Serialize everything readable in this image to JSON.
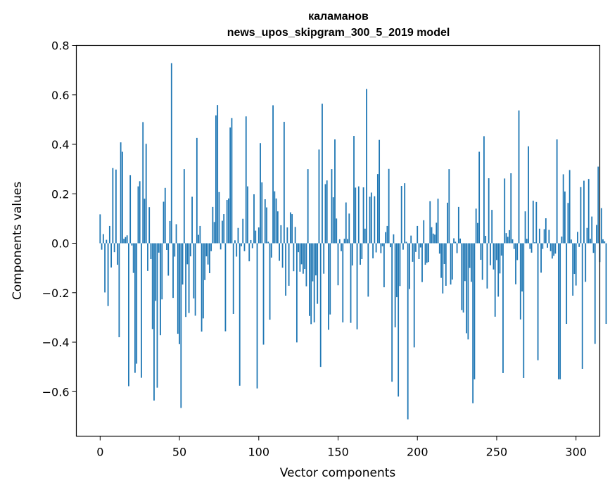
{
  "chart_data": {
    "type": "bar",
    "title_line1": "каламанов",
    "title_line2": "news_upos_skipgram_300_5_2019 model",
    "xlabel": "Vector components",
    "ylabel": "Components values",
    "xlim": [
      -15,
      315
    ],
    "ylim": [
      -0.78,
      0.8
    ],
    "xticks": [
      0,
      50,
      100,
      150,
      200,
      250,
      300
    ],
    "yticks": [
      -0.6,
      -0.4,
      -0.2,
      0.0,
      0.2,
      0.4,
      0.6,
      0.8
    ],
    "ytick_labels": [
      "−0.6",
      "−0.4",
      "−0.2",
      "0.0",
      "0.2",
      "0.4",
      "0.6",
      "0.8"
    ],
    "bar_color": "#1f77b4",
    "values": [
      0.117,
      -0.026,
      0.037,
      -0.199,
      0.014,
      -0.254,
      0.07,
      -0.098,
      0.304,
      -0.036,
      0.298,
      -0.087,
      -0.38,
      0.408,
      0.37,
      0.018,
      0.025,
      0.032,
      -0.578,
      0.275,
      -0.009,
      -0.12,
      -0.524,
      -0.487,
      0.23,
      0.251,
      -0.544,
      0.49,
      0.18,
      0.402,
      -0.112,
      0.146,
      -0.064,
      -0.347,
      -0.636,
      -0.233,
      -0.584,
      -0.038,
      -0.372,
      -0.227,
      0.168,
      0.224,
      -0.027,
      -0.131,
      0.09,
      0.728,
      -0.221,
      -0.054,
      0.077,
      -0.366,
      -0.408,
      -0.666,
      -0.167,
      0.3,
      -0.298,
      -0.085,
      -0.282,
      -0.053,
      0.188,
      -0.223,
      -0.293,
      0.426,
      0.034,
      0.07,
      -0.357,
      -0.304,
      -0.149,
      -0.053,
      -0.086,
      -0.121,
      -0.032,
      0.147,
      0.086,
      0.517,
      0.559,
      0.207,
      -0.025,
      0.091,
      0.118,
      -0.356,
      0.175,
      0.181,
      0.468,
      0.506,
      -0.286,
      0.012,
      -0.054,
      0.062,
      -0.576,
      -0.012,
      0.099,
      -0.032,
      0.513,
      0.23,
      -0.073,
      0.013,
      -0.02,
      0.198,
      0.051,
      -0.587,
      0.064,
      0.405,
      0.246,
      -0.41,
      0.178,
      0.145,
      0.006,
      -0.309,
      -0.058,
      0.558,
      0.21,
      0.181,
      0.129,
      -0.071,
      0.073,
      -0.099,
      0.491,
      -0.212,
      0.064,
      -0.172,
      0.125,
      0.118,
      -0.113,
      0.066,
      -0.401,
      -0.036,
      -0.115,
      -0.085,
      -0.123,
      -0.104,
      -0.174,
      0.3,
      -0.294,
      -0.327,
      -0.154,
      -0.32,
      -0.13,
      -0.245,
      0.379,
      -0.5,
      0.564,
      -0.123,
      0.239,
      0.254,
      -0.35,
      -0.288,
      0.3,
      0.186,
      0.42,
      0.1,
      -0.17,
      0.016,
      -0.032,
      -0.32,
      0.018,
      0.165,
      0.017,
      0.12,
      -0.322,
      -0.09,
      0.434,
      0.225,
      -0.348,
      0.23,
      -0.087,
      -0.064,
      0.226,
      0.059,
      0.624,
      -0.216,
      0.188,
      0.205,
      -0.061,
      0.19,
      -0.037,
      0.28,
      0.418,
      -0.04,
      -0.012,
      -0.178,
      0.045,
      0.07,
      0.301,
      -0.016,
      -0.56,
      0.036,
      -0.34,
      -0.218,
      -0.62,
      -0.173,
      0.232,
      -0.026,
      0.243,
      0.006,
      -0.712,
      -0.185,
      0.031,
      -0.075,
      -0.421,
      -0.035,
      0.07,
      -0.064,
      -0.017,
      -0.157,
      0.093,
      -0.087,
      -0.079,
      -0.076,
      0.17,
      0.065,
      0.039,
      0.035,
      0.083,
      0.18,
      -0.042,
      -0.14,
      -0.203,
      -0.084,
      -0.172,
      0.164,
      0.3,
      -0.167,
      -0.147,
      0.02,
      0.006,
      -0.04,
      0.147,
      0.019,
      -0.27,
      -0.28,
      -0.153,
      -0.364,
      -0.389,
      -0.1,
      -0.156,
      -0.647,
      -0.55,
      0.14,
      0.082,
      0.37,
      -0.067,
      -0.148,
      0.433,
      0.03,
      -0.183,
      0.263,
      -0.089,
      0.135,
      -0.106,
      -0.297,
      -0.068,
      -0.216,
      -0.122,
      -0.05,
      -0.525,
      0.262,
      0.041,
      0.026,
      0.053,
      0.283,
      0.016,
      -0.023,
      -0.166,
      -0.068,
      0.537,
      -0.308,
      -0.195,
      -0.545,
      0.129,
      0.018,
      0.392,
      -0.023,
      -0.038,
      0.172,
      0.004,
      0.167,
      -0.473,
      0.059,
      -0.119,
      -0.023,
      0.057,
      0.101,
      -0.018,
      0.054,
      -0.032,
      -0.062,
      -0.051,
      -0.042,
      0.42,
      -0.55,
      -0.55,
      0.027,
      0.279,
      0.209,
      -0.326,
      0.163,
      0.296,
      0.015,
      -0.212,
      -0.124,
      -0.171,
      0.046,
      -0.015,
      0.227,
      -0.508,
      0.253,
      -0.156,
      0.062,
      0.26,
      0.018,
      0.108,
      -0.039,
      -0.407,
      0.074,
      0.31,
      -0.076,
      0.142,
      0.016,
      0.008,
      -0.326
    ]
  }
}
